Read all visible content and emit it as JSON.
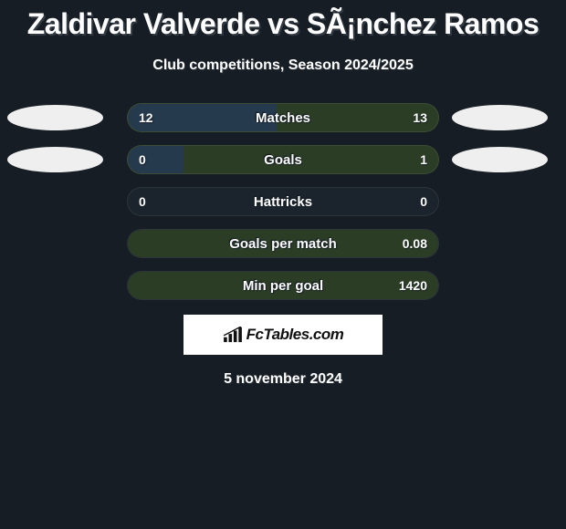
{
  "header": {
    "title": "Zaldivar Valverde vs SÃ¡nchez Ramos",
    "subtitle": "Club competitions, Season 2024/2025"
  },
  "ellipse_colors": {
    "left": "#efefef",
    "right": "#efefef"
  },
  "stats": [
    {
      "label": "Matches",
      "left_val": "12",
      "right_val": "13",
      "fill_pct": 48,
      "fill_color": "#263a4e",
      "bar_bg": "#2b3e25",
      "show_ellipses": true
    },
    {
      "label": "Goals",
      "left_val": "0",
      "right_val": "1",
      "fill_pct": 18,
      "fill_color": "#263a4e",
      "bar_bg": "#2b3e25",
      "show_ellipses": true
    },
    {
      "label": "Hattricks",
      "left_val": "0",
      "right_val": "0",
      "fill_pct": 0,
      "fill_color": "#263a4e",
      "bar_bg": "#1b232c",
      "show_ellipses": false
    },
    {
      "label": "Goals per match",
      "left_val": "",
      "right_val": "0.08",
      "fill_pct": 100,
      "fill_color": "#2b3e25",
      "bar_bg": "#1b232c",
      "show_ellipses": false
    },
    {
      "label": "Min per goal",
      "left_val": "",
      "right_val": "1420",
      "fill_pct": 100,
      "fill_color": "#2b3e25",
      "bar_bg": "#1b232c",
      "show_ellipses": false
    }
  ],
  "footer": {
    "logo_text": "FcTables.com",
    "date": "5 november 2024"
  },
  "colors": {
    "page_bg": "#161d24",
    "text": "#fdfdfd",
    "logo_box_bg": "#ffffff",
    "logo_icon": "#111111"
  }
}
